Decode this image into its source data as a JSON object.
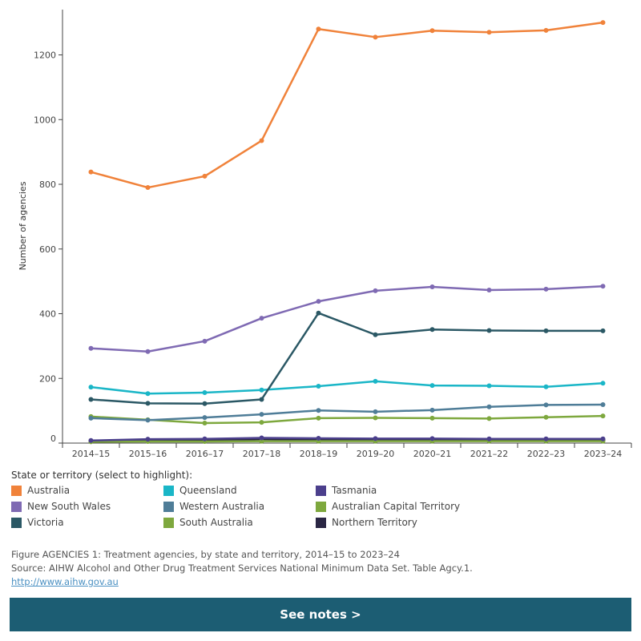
{
  "chart_data": {
    "type": "line",
    "title": "",
    "xlabel": "",
    "ylabel": "Number of agencies",
    "ylim": [
      0,
      1340
    ],
    "yticks": [
      0,
      200,
      400,
      600,
      800,
      1000,
      1200
    ],
    "categories": [
      "2014–15",
      "2015–16",
      "2016–17",
      "2017–18",
      "2018–19",
      "2019–20",
      "2020–21",
      "2021–22",
      "2022–23",
      "2023–24"
    ],
    "series": [
      {
        "name": "Australia",
        "color": "#f0823a",
        "values": [
          838,
          790,
          825,
          935,
          1280,
          1255,
          1275,
          1270,
          1276,
          1300
        ]
      },
      {
        "name": "New South Wales",
        "color": "#7f6ab3",
        "values": [
          293,
          283,
          315,
          386,
          438,
          471,
          483,
          473,
          476,
          485
        ]
      },
      {
        "name": "Victoria",
        "color": "#2b5865",
        "values": [
          135,
          123,
          122,
          135,
          402,
          335,
          351,
          348,
          347,
          347
        ]
      },
      {
        "name": "Queensland",
        "color": "#1ab6c7",
        "values": [
          173,
          153,
          156,
          164,
          176,
          191,
          178,
          177,
          174,
          185
        ]
      },
      {
        "name": "Western Australia",
        "color": "#4f7d98",
        "values": [
          77,
          71,
          79,
          89,
          101,
          97,
          102,
          112,
          118,
          119
        ]
      },
      {
        "name": "South Australia",
        "color": "#7ea83e",
        "values": [
          82,
          72,
          62,
          64,
          77,
          78,
          77,
          76,
          80,
          84
        ]
      },
      {
        "name": "Tasmania",
        "color": "#4b3f8c",
        "values": [
          8,
          12,
          13,
          16,
          15,
          14,
          14,
          13,
          13,
          13
        ]
      },
      {
        "name": "Australian Capital Territory",
        "color": "#7ea83e",
        "values": [
          4,
          5,
          5,
          6,
          6,
          6,
          6,
          6,
          6,
          6
        ]
      },
      {
        "name": "Northern Territory",
        "color": "#2a2644",
        "values": [
          7,
          9,
          10,
          12,
          11,
          10,
          10,
          10,
          10,
          10
        ]
      }
    ]
  },
  "legend": {
    "title": "State or territory (select to highlight):",
    "items": [
      {
        "label": "Australia",
        "color": "#f0823a"
      },
      {
        "label": "Queensland",
        "color": "#1ab6c7"
      },
      {
        "label": "Tasmania",
        "color": "#4b3f8c"
      },
      {
        "label": "New South Wales",
        "color": "#7f6ab3"
      },
      {
        "label": "Western Australia",
        "color": "#4f7d98"
      },
      {
        "label": "Australian Capital Territory",
        "color": "#7ea83e"
      },
      {
        "label": "Victoria",
        "color": "#2b5865"
      },
      {
        "label": "South Australia",
        "color": "#7ea83e"
      },
      {
        "label": "Northern Territory",
        "color": "#2a2644"
      }
    ]
  },
  "caption": {
    "figure": "Figure AGENCIES 1: Treatment agencies, by state and territory, 2014–15 to 2023–24",
    "source": "Source: AIHW Alcohol and Other Drug Treatment Services National Minimum Data Set. Table Agcy.1.",
    "link": "http://www.aihw.gov.au"
  },
  "notes_button": {
    "label": "See notes >"
  }
}
